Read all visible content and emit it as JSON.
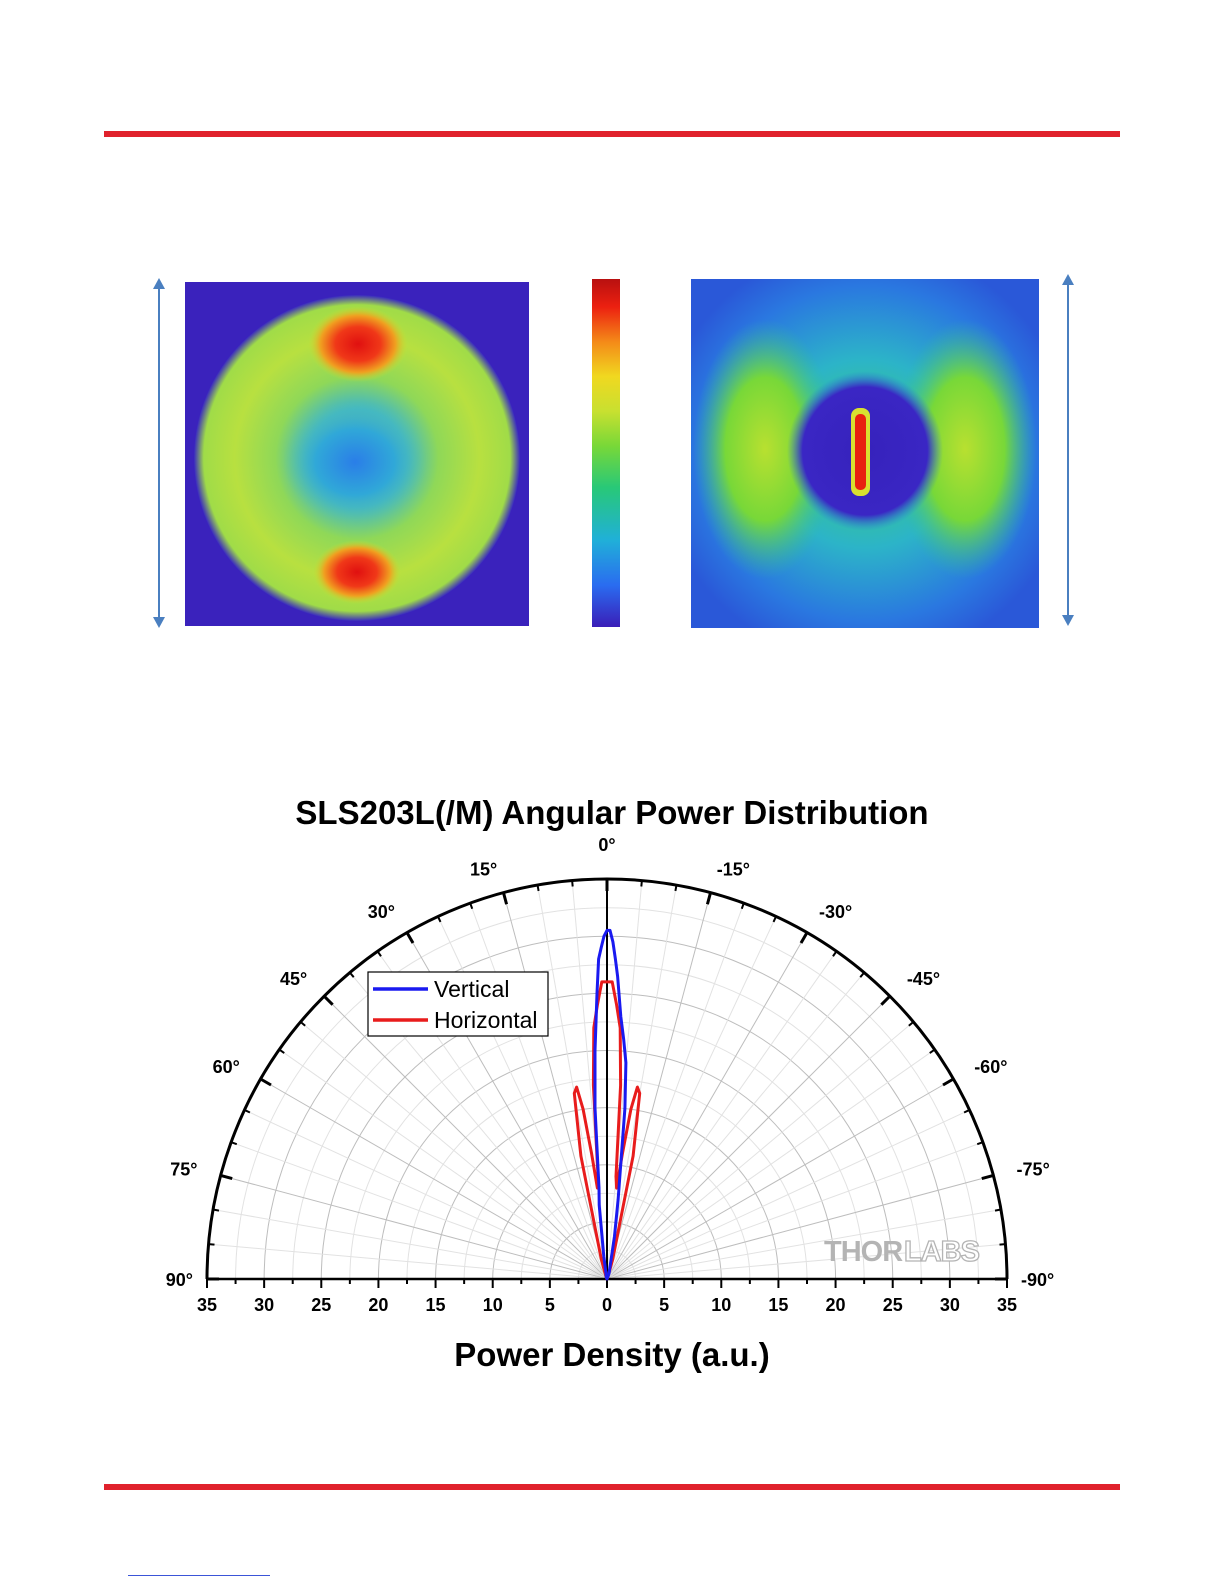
{
  "images": [
    {
      "name": "near-field-intensity-map"
    },
    {
      "name": "colorbar"
    },
    {
      "name": "far-field-intensity-map"
    }
  ],
  "colors": {
    "rule": "#e0222c",
    "vertical": "#1a1af0",
    "horizontal": "#e81c1c",
    "arrow": "#4a7fc0"
  },
  "logo": {
    "text": "THORLABS"
  },
  "chart_data": {
    "type": "polar",
    "title": "SLS203L(/M) Angular Power Distribution",
    "xlabel": "Power Density (a.u.)",
    "angle_ticks": [
      "90°",
      "75°",
      "60°",
      "45°",
      "30°",
      "15°",
      "0°",
      "-15°",
      "-30°",
      "-45°",
      "-60°",
      "-75°",
      "-90°"
    ],
    "angle_values": [
      90,
      75,
      60,
      45,
      30,
      15,
      0,
      -15,
      -30,
      -45,
      -60,
      -75,
      -90
    ],
    "radial_ticks": [
      "35",
      "30",
      "25",
      "20",
      "15",
      "10",
      "5",
      "0",
      "5",
      "10",
      "15",
      "20",
      "25",
      "30",
      "35"
    ],
    "radial_range": [
      0,
      35
    ],
    "legend_position": "upper-left",
    "grid": true,
    "series": [
      {
        "name": "Vertical",
        "color": "#1a1af0",
        "angle": [
          -90,
          -40,
          -20,
          -10,
          -8,
          -6,
          -5,
          -4,
          -3,
          -2,
          -1.5,
          -1,
          -0.5,
          0,
          0.5,
          1,
          1.5,
          2,
          3,
          4,
          5,
          6,
          8,
          10,
          20,
          40,
          90
        ],
        "r": [
          0,
          0,
          0.5,
          3.8,
          7,
          15,
          19,
          21,
          23,
          26.5,
          28,
          29.5,
          30.5,
          30.5,
          30,
          29,
          28,
          25,
          20,
          15,
          8,
          6.5,
          2,
          0.5,
          0.2,
          0,
          0
        ]
      },
      {
        "name": "Horizontal",
        "color": "#e81c1c",
        "angle": [
          -90,
          -30,
          -20,
          -16,
          -12,
          -10,
          -9,
          -8,
          -7,
          -6,
          -5,
          -4,
          -3,
          -2,
          -1,
          0,
          1,
          2,
          3,
          4,
          5,
          6,
          7,
          8,
          9,
          10,
          12,
          16,
          20,
          30,
          90
        ],
        "r": [
          0,
          0,
          0.3,
          1.8,
          11,
          16.5,
          17,
          15,
          11,
          8,
          9,
          17,
          22,
          24,
          26,
          26,
          26,
          24,
          22,
          17,
          9,
          8,
          11,
          15,
          17,
          16.5,
          11,
          1.8,
          0.3,
          0,
          0
        ]
      }
    ]
  }
}
